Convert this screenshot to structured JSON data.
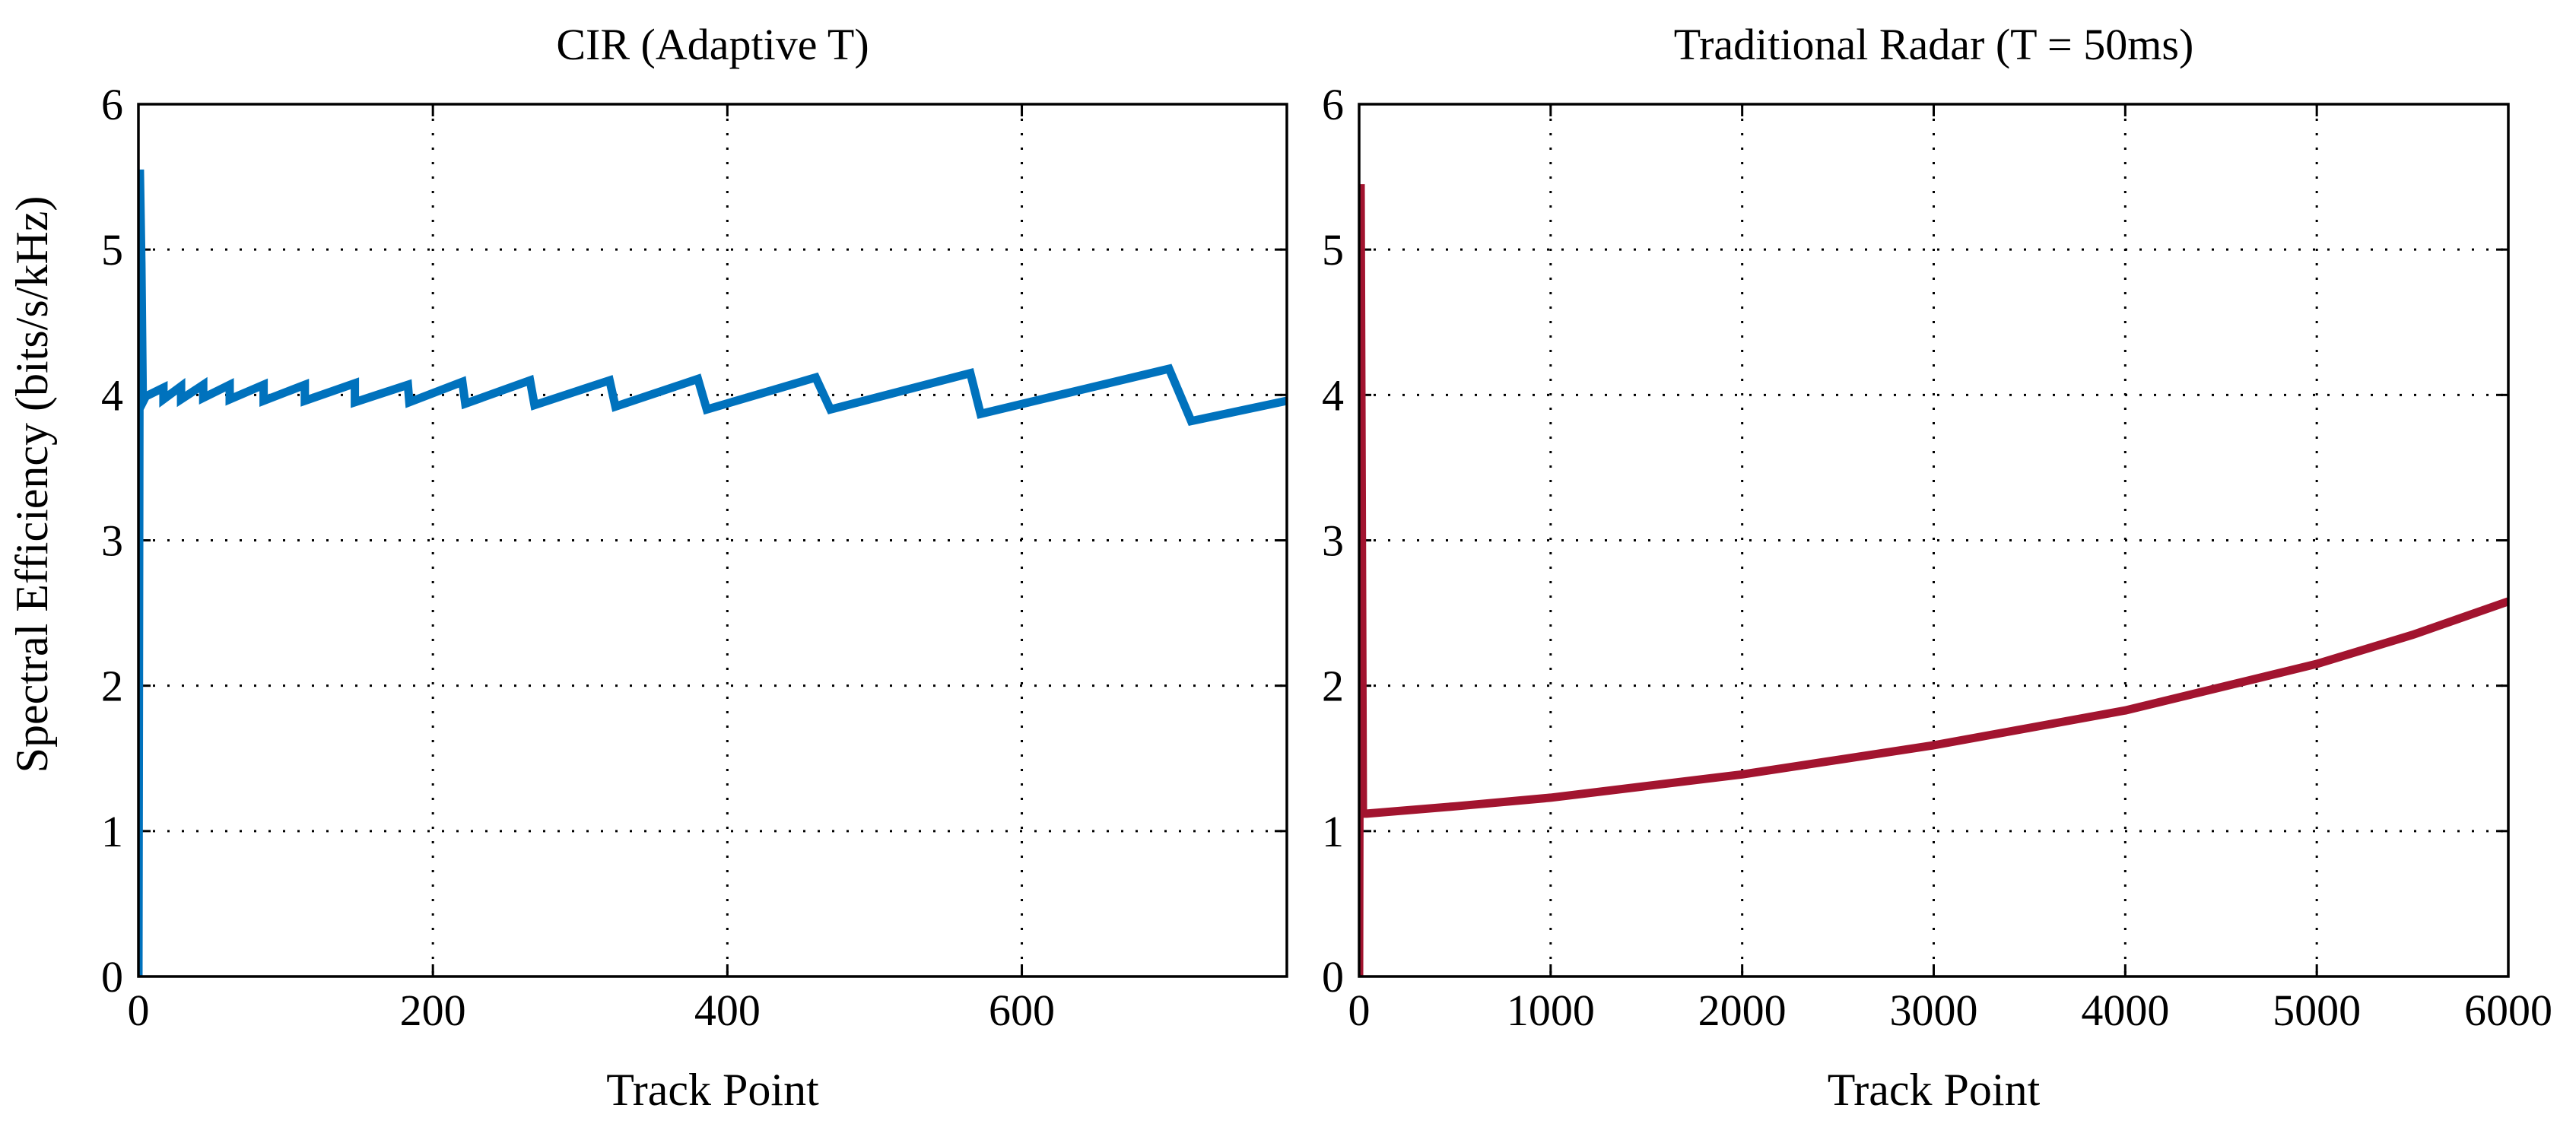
{
  "figure": {
    "ylabel": "Spectral Efficiency (bits/s/kHz)"
  },
  "chart_data": [
    {
      "type": "line",
      "title": "CIR (Adaptive T)",
      "xlabel": "Track Point",
      "ylabel": "Spectral Efficiency (bits/s/kHz)",
      "xlim": [
        0,
        780
      ],
      "ylim": [
        0,
        6
      ],
      "xticks": [
        0,
        200,
        400,
        600
      ],
      "xtick_labels": [
        "0",
        "200",
        "400",
        "600"
      ],
      "yticks": [
        0,
        1,
        2,
        3,
        4,
        5,
        6
      ],
      "ytick_labels": [
        "0",
        "1",
        "2",
        "3",
        "4",
        "5",
        "6"
      ],
      "grid": true,
      "series": [
        {
          "name": "CIR",
          "color": "#0072BD",
          "x": [
            0,
            1,
            2,
            3,
            5,
            17,
            17,
            29,
            29,
            44,
            44,
            62,
            62,
            85,
            85,
            113,
            113,
            147,
            147,
            183,
            184,
            220,
            222,
            266,
            269,
            320,
            324,
            380,
            386,
            460,
            470,
            565,
            572,
            700,
            715,
            780
          ],
          "y": [
            0,
            5.55,
            4.9,
            3.95,
            3.99,
            4.05,
            3.97,
            4.06,
            3.97,
            4.07,
            3.98,
            4.07,
            3.97,
            4.07,
            3.96,
            4.07,
            3.96,
            4.08,
            3.95,
            4.07,
            3.95,
            4.09,
            3.94,
            4.1,
            3.93,
            4.1,
            3.92,
            4.11,
            3.9,
            4.12,
            3.9,
            4.15,
            3.87,
            4.18,
            3.82,
            3.96
          ]
        }
      ]
    },
    {
      "type": "line",
      "title": "Traditional Radar (T = 50ms)",
      "xlabel": "Track Point",
      "ylabel": "",
      "xlim": [
        0,
        6000
      ],
      "ylim": [
        0,
        6
      ],
      "xticks": [
        0,
        1000,
        2000,
        3000,
        4000,
        5000,
        6000
      ],
      "xtick_labels": [
        "0",
        "1000",
        "2000",
        "3000",
        "4000",
        "5000",
        "6000"
      ],
      "yticks": [
        0,
        1,
        2,
        3,
        4,
        5,
        6
      ],
      "ytick_labels": [
        "0",
        "1",
        "2",
        "3",
        "4",
        "5",
        "6"
      ],
      "grid": true,
      "series": [
        {
          "name": "Traditional Radar",
          "color": "#A2142F",
          "x": [
            0,
            8,
            20,
            40,
            500,
            1000,
            1500,
            2000,
            2500,
            3000,
            3500,
            4000,
            4500,
            5000,
            5500,
            6000
          ],
          "y": [
            0,
            5.45,
            1.12,
            1.12,
            1.17,
            1.23,
            1.31,
            1.39,
            1.49,
            1.59,
            1.71,
            1.83,
            1.99,
            2.15,
            2.35,
            2.58
          ]
        }
      ]
    }
  ]
}
